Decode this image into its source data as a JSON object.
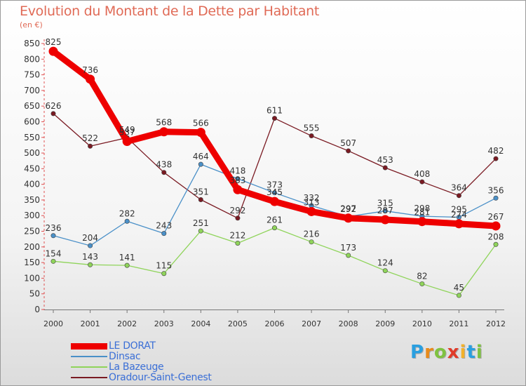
{
  "chart_data": {
    "type": "line",
    "title": "Evolution du Montant de la Dette par Habitant",
    "unit": "(en €)",
    "x": [
      "2000",
      "2001",
      "2002",
      "2003",
      "2004",
      "2005",
      "2006",
      "2007",
      "2008",
      "2009",
      "2010",
      "2011",
      "2012"
    ],
    "ylim": [
      0,
      850
    ],
    "yticks": [
      0,
      50,
      100,
      150,
      200,
      250,
      300,
      350,
      400,
      450,
      500,
      550,
      600,
      650,
      700,
      750,
      800,
      850
    ],
    "grid": false,
    "legend_position": "bottom-left",
    "series": [
      {
        "name": "LE DORAT",
        "color": "#ee0000",
        "values": [
          825,
          736,
          537,
          568,
          566,
          383,
          345,
          313,
          292,
          287,
          281,
          274,
          267
        ]
      },
      {
        "name": "Dinsac",
        "color": "#4a90c8",
        "values": [
          236,
          204,
          282,
          243,
          464,
          418,
          373,
          332,
          297,
          315,
          298,
          295,
          356
        ]
      },
      {
        "name": "La Bazeuge",
        "color": "#8fd45a",
        "values": [
          154,
          143,
          141,
          115,
          251,
          212,
          261,
          216,
          173,
          124,
          82,
          45,
          208
        ]
      },
      {
        "name": "Oradour-Saint-Genest",
        "color": "#7a1a22",
        "values": [
          626,
          522,
          549,
          438,
          351,
          292,
          611,
          555,
          507,
          453,
          408,
          364,
          482
        ]
      }
    ]
  },
  "logo": {
    "letters": [
      "P",
      "r",
      "o",
      "x",
      "i",
      "t",
      "i"
    ],
    "colors": [
      "#2a9fe0",
      "#e88a1a",
      "#7fc241",
      "#e03c2a",
      "#f2b12a",
      "#2a9fe0",
      "#7fc241"
    ]
  }
}
